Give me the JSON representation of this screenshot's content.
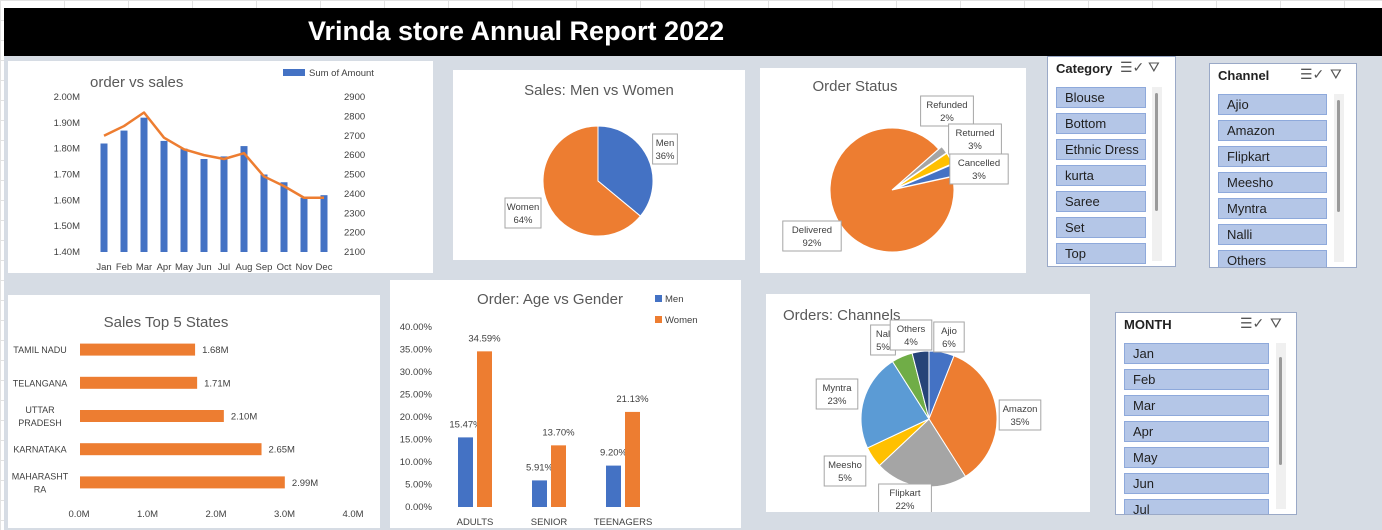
{
  "report_title": "Vrinda store Annual Report 2022",
  "colors": {
    "blue": "#4472c4",
    "orange": "#ed7d31",
    "gray": "#a5a5a5",
    "yellow": "#ffc000",
    "lightblue": "#5b9bd5",
    "green": "#70ad47",
    "navy": "#264478"
  },
  "chart_data": [
    {
      "type": "bar",
      "title": "order vs sales",
      "categories": [
        "Jan",
        "Feb",
        "Mar",
        "Apr",
        "May",
        "Jun",
        "Jul",
        "Aug",
        "Sep",
        "Oct",
        "Nov",
        "Dec"
      ],
      "series": [
        {
          "name": "Sum of Amount",
          "axis": "left",
          "values": [
            1.82,
            1.87,
            1.92,
            1.83,
            1.8,
            1.76,
            1.77,
            1.81,
            1.7,
            1.67,
            1.61,
            1.62
          ]
        },
        {
          "axis": "right",
          "type": "line",
          "values": [
            2700,
            2750,
            2820,
            2690,
            2630,
            2600,
            2580,
            2610,
            2490,
            2440,
            2380,
            2380
          ]
        }
      ],
      "ylim_left": [
        1.4,
        2.0
      ],
      "yticks_left": [
        "1.40M",
        "1.50M",
        "1.60M",
        "1.70M",
        "1.80M",
        "1.90M",
        "2.00M"
      ],
      "ylim_right": [
        2100,
        2900
      ],
      "yticks_right": [
        "2100",
        "2200",
        "2300",
        "2400",
        "2500",
        "2600",
        "2700",
        "2800",
        "2900"
      ],
      "legend": "top-right"
    },
    {
      "type": "pie",
      "title": "Sales: Men vs Women",
      "labels": [
        "Men",
        "Women"
      ],
      "values": [
        36,
        64
      ],
      "value_labels": [
        "36%",
        "64%"
      ]
    },
    {
      "type": "pie",
      "title": "Order Status",
      "labels": [
        "Delivered",
        "Refunded",
        "Returned",
        "Cancelled"
      ],
      "values": [
        92,
        2,
        3,
        3
      ],
      "value_labels": [
        "92%",
        "2%",
        "3%",
        "3%"
      ]
    },
    {
      "type": "bar",
      "orientation": "horizontal",
      "title": "Sales Top 5 States",
      "categories": [
        "TAMIL NADU",
        "TELANGANA",
        "UTTAR PRADESH",
        "KARNATAKA",
        "MAHARASHTRA"
      ],
      "category_lines": [
        [
          "TAMIL NADU"
        ],
        [
          "TELANGANA"
        ],
        [
          "UTTAR",
          "PRADESH"
        ],
        [
          "KARNATAKA"
        ],
        [
          "MAHARASHT",
          "RA"
        ]
      ],
      "values": [
        1.68,
        1.71,
        2.1,
        2.65,
        2.99
      ],
      "value_labels": [
        "1.68M",
        "1.71M",
        "2.10M",
        "2.65M",
        "2.99M"
      ],
      "xlim": [
        0,
        4
      ],
      "xticks": [
        "0.0M",
        "1.0M",
        "2.0M",
        "3.0M",
        "4.0M"
      ]
    },
    {
      "type": "bar",
      "title": "Order: Age vs Gender",
      "categories": [
        "ADULTS",
        "SENIOR",
        "TEENAGERS"
      ],
      "series": [
        {
          "name": "Men",
          "values": [
            15.47,
            5.91,
            9.2
          ],
          "value_labels": [
            "15.47%",
            "5.91%",
            "9.20%"
          ]
        },
        {
          "name": "Women",
          "values": [
            34.59,
            13.7,
            21.13
          ],
          "value_labels": [
            "34.59%",
            "13.70%",
            "21.13%"
          ]
        }
      ],
      "ylim": [
        0,
        40
      ],
      "yticks": [
        "0.00%",
        "5.00%",
        "10.00%",
        "15.00%",
        "20.00%",
        "25.00%",
        "30.00%",
        "35.00%",
        "40.00%"
      ],
      "legend": "top-right"
    },
    {
      "type": "pie",
      "title": "Orders: Channels",
      "labels": [
        "Ajio",
        "Amazon",
        "Flipkart",
        "Meesho",
        "Myntra",
        "Nalli",
        "Others"
      ],
      "short_labels": [
        "Ajio",
        "Amazon",
        "Flipkart",
        "Meesho",
        "Myntra",
        "Nal",
        "Others"
      ],
      "values": [
        6,
        35,
        22,
        5,
        23,
        5,
        4
      ],
      "value_labels": [
        "6%",
        "35%",
        "22%",
        "5%",
        "23%",
        "5%",
        "4%"
      ]
    }
  ],
  "slicers": {
    "category": {
      "header": "Category",
      "items": [
        "Blouse",
        "Bottom",
        "Ethnic Dress",
        "kurta",
        "Saree",
        "Set",
        "Top"
      ]
    },
    "channel": {
      "header": "Channel",
      "items": [
        "Ajio",
        "Amazon",
        "Flipkart",
        "Meesho",
        "Myntra",
        "Nalli",
        "Others"
      ]
    },
    "month": {
      "header": "MONTH",
      "items": [
        "Jan",
        "Feb",
        "Mar",
        "Apr",
        "May",
        "Jun",
        "Jul"
      ]
    }
  },
  "icons": {
    "multiselect": "multi-select-icon",
    "clear_filter": "clear-filter-icon"
  }
}
